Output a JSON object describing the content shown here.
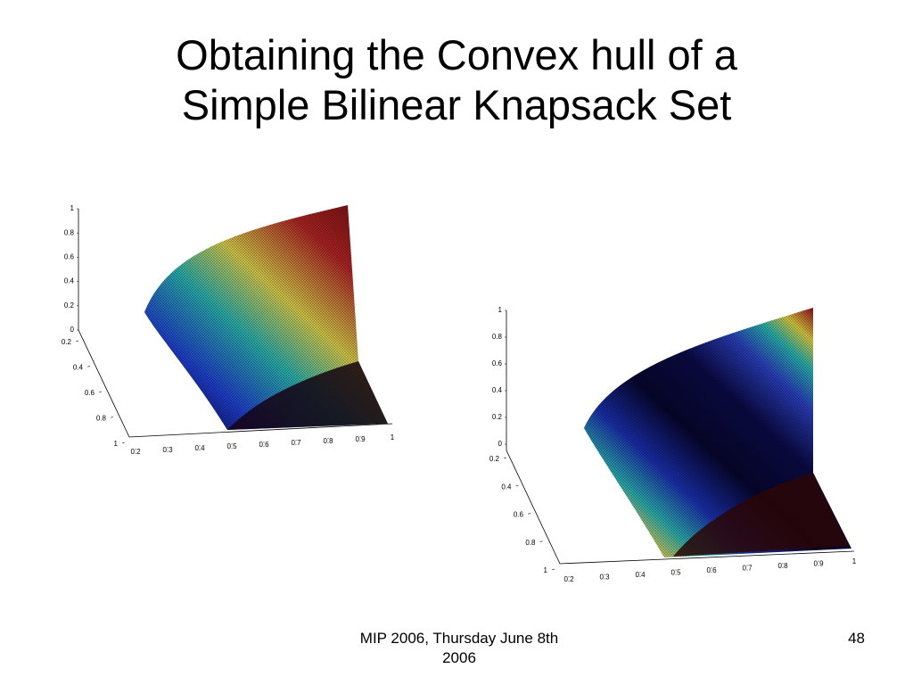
{
  "slide": {
    "title_line1": "Obtaining the Convex hull of a",
    "title_line2": "Simple Bilinear Knapsack Set",
    "footer_line1": "MIP 2006, Thursday June 8th",
    "footer_line2": "2006",
    "page_number": "48"
  },
  "chart_data": [
    {
      "type": "surface-3d",
      "z_ticks": [
        "1",
        "0.8",
        "0.6",
        "0.4",
        "0.2",
        "0"
      ],
      "y_ticks": [
        "0.2",
        "0.4",
        "0.6",
        "0.8",
        "1"
      ],
      "x_ticks": [
        "0.2",
        "0.3",
        "0.4",
        "0.5",
        "0.6",
        "0.7",
        "0.8",
        "0.9",
        "1"
      ],
      "colormap": [
        "#1a0508",
        "#0b0b60",
        "#1f3fd0",
        "#22b3b0",
        "#e0d64a",
        "#b02020",
        "#5a0a0a"
      ]
    },
    {
      "type": "surface-3d",
      "z_ticks": [
        "1",
        "0.8",
        "0.6",
        "0.4",
        "0.2",
        "0"
      ],
      "y_ticks": [
        "0.2",
        "0.4",
        "0.6",
        "0.8",
        "1"
      ],
      "x_ticks": [
        "0.2",
        "0.3",
        "0.4",
        "0.5",
        "0.6",
        "0.7",
        "0.8",
        "0.9",
        "1"
      ],
      "colormap": [
        "#3a0808",
        "#a02020",
        "#e4d050",
        "#2bb0b0",
        "#1a30b0",
        "#06062e",
        "#0b0b48",
        "#2a40c0",
        "#28b4b0",
        "#e0d040",
        "#a01a1a",
        "#5a0a0a"
      ]
    }
  ]
}
